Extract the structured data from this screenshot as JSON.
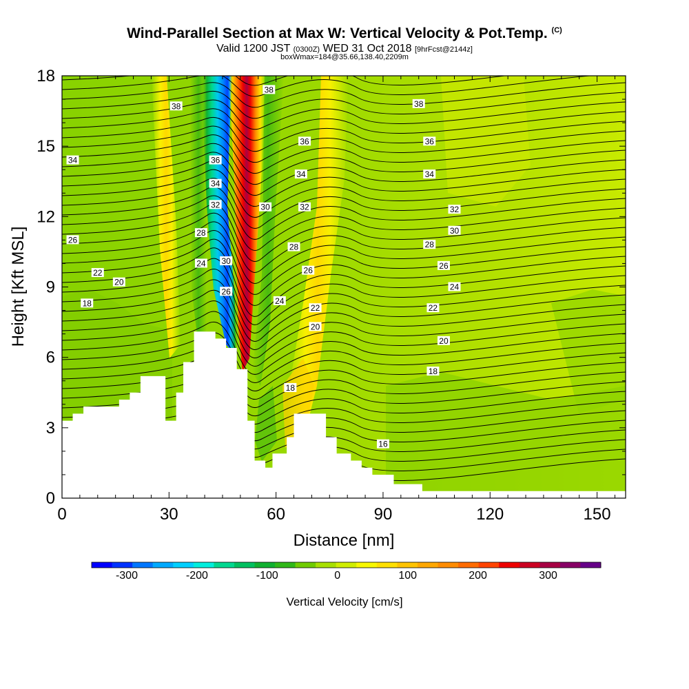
{
  "title": {
    "main": "Wind-Parallel Section at Max W: Vertical Velocity & Pot.Temp.",
    "copyright": "(C)",
    "line2_valid": "Valid 1200 JST",
    "line2_z": "(0300Z)",
    "line2_date": "WED 31 Oct 2018",
    "line2_fcst": "[9hrFcst@2144z]",
    "line3": "boxWmax=184@35.66,138.40,2209m"
  },
  "chart_data": {
    "type": "heatmap",
    "xlabel": "Distance [nm]",
    "ylabel": "Height [Kft MSL]",
    "xlim": [
      0,
      158
    ],
    "ylim": [
      0,
      18
    ],
    "x_ticks": [
      0,
      30,
      60,
      90,
      120,
      150
    ],
    "y_ticks": [
      0,
      3,
      6,
      9,
      12,
      15,
      18
    ],
    "x_tick_labels": [
      "0",
      "30",
      "60",
      "90",
      "120",
      "150"
    ],
    "y_tick_labels": [
      "0",
      "3",
      "6",
      "9",
      "12",
      "15",
      "18"
    ],
    "colorbar": {
      "label": "Vertical Velocity [cm/s]",
      "min": -350,
      "max": 375,
      "tick_values": [
        -300,
        -200,
        -100,
        0,
        100,
        200,
        300
      ],
      "tick_labels": [
        "-300",
        "-200",
        "-100",
        "0",
        "100",
        "200",
        "300"
      ],
      "colors": [
        "#0000ff",
        "#0033ff",
        "#0077ff",
        "#00aaff",
        "#00d0ff",
        "#00eedd",
        "#00d890",
        "#00c060",
        "#10b030",
        "#30b818",
        "#70cc00",
        "#a8e000",
        "#d0ee00",
        "#f8f800",
        "#ffe000",
        "#ffc400",
        "#ffa800",
        "#ff8c00",
        "#ff6c00",
        "#ff4400",
        "#ee0000",
        "#cc0022",
        "#a80044",
        "#880066",
        "#660088"
      ]
    },
    "terrain": {
      "x": [
        0,
        3,
        3,
        6,
        6,
        11,
        11,
        16,
        16,
        19,
        19,
        22,
        22,
        24,
        24,
        29,
        29,
        32,
        32,
        34,
        34,
        37,
        37,
        43,
        43,
        46,
        46,
        49,
        49,
        52,
        52,
        54,
        54,
        57,
        57,
        59,
        59,
        63,
        63,
        65,
        65,
        68,
        68,
        74,
        74,
        77,
        77,
        81,
        81,
        84,
        84,
        87,
        87,
        93,
        93,
        96,
        96,
        101,
        101,
        104,
        104,
        158
      ],
      "y": [
        3.3,
        3.3,
        3.6,
        3.6,
        3.9,
        3.9,
        3.9,
        3.9,
        4.2,
        4.2,
        4.5,
        4.5,
        5.2,
        5.2,
        5.2,
        5.2,
        3.3,
        3.3,
        4.5,
        4.5,
        5.8,
        5.8,
        7.1,
        7.1,
        6.8,
        6.8,
        6.4,
        6.4,
        5.5,
        5.5,
        3.3,
        3.3,
        1.6,
        1.6,
        1.3,
        1.3,
        1.9,
        1.9,
        2.6,
        2.6,
        3.6,
        3.6,
        3.6,
        3.6,
        2.6,
        2.6,
        1.9,
        1.9,
        1.6,
        1.6,
        1.3,
        1.3,
        1.0,
        1.0,
        0.6,
        0.6,
        0.6,
        0.6,
        0.3,
        0.3,
        0.3,
        0.3
      ]
    },
    "theta_contours_interval": 1,
    "theta_labels": [
      {
        "value": "38",
        "x": 32,
        "y": 16.7
      },
      {
        "value": "38",
        "x": 58,
        "y": 17.4
      },
      {
        "value": "38",
        "x": 100,
        "y": 16.8
      },
      {
        "value": "36",
        "x": 43,
        "y": 14.4
      },
      {
        "value": "36",
        "x": 68,
        "y": 15.2
      },
      {
        "value": "36",
        "x": 103,
        "y": 15.2
      },
      {
        "value": "34",
        "x": 3,
        "y": 14.4
      },
      {
        "value": "34",
        "x": 43,
        "y": 13.4
      },
      {
        "value": "34",
        "x": 67,
        "y": 13.8
      },
      {
        "value": "34",
        "x": 103,
        "y": 13.8
      },
      {
        "value": "32",
        "x": 43,
        "y": 12.5
      },
      {
        "value": "32",
        "x": 68,
        "y": 12.4
      },
      {
        "value": "32",
        "x": 110,
        "y": 12.3
      },
      {
        "value": "30",
        "x": 57,
        "y": 12.4
      },
      {
        "value": "30",
        "x": 110,
        "y": 11.4
      },
      {
        "value": "30",
        "x": 46,
        "y": 10.1
      },
      {
        "value": "28",
        "x": 39,
        "y": 11.3
      },
      {
        "value": "28",
        "x": 65,
        "y": 10.7
      },
      {
        "value": "28",
        "x": 103,
        "y": 10.8
      },
      {
        "value": "26",
        "x": 3,
        "y": 11.0
      },
      {
        "value": "26",
        "x": 69,
        "y": 9.7
      },
      {
        "value": "26",
        "x": 107,
        "y": 9.9
      },
      {
        "value": "26",
        "x": 46,
        "y": 8.8
      },
      {
        "value": "24",
        "x": 39,
        "y": 10.0
      },
      {
        "value": "24",
        "x": 61,
        "y": 8.4
      },
      {
        "value": "24",
        "x": 110,
        "y": 9.0
      },
      {
        "value": "22",
        "x": 10,
        "y": 9.6
      },
      {
        "value": "22",
        "x": 71,
        "y": 8.1
      },
      {
        "value": "22",
        "x": 104,
        "y": 8.1
      },
      {
        "value": "20",
        "x": 16,
        "y": 9.2
      },
      {
        "value": "20",
        "x": 71,
        "y": 7.3
      },
      {
        "value": "20",
        "x": 107,
        "y": 6.7
      },
      {
        "value": "18",
        "x": 7,
        "y": 8.3
      },
      {
        "value": "18",
        "x": 64,
        "y": 4.7
      },
      {
        "value": "18",
        "x": 104,
        "y": 5.4
      },
      {
        "value": "16",
        "x": 90,
        "y": 2.3
      }
    ]
  }
}
